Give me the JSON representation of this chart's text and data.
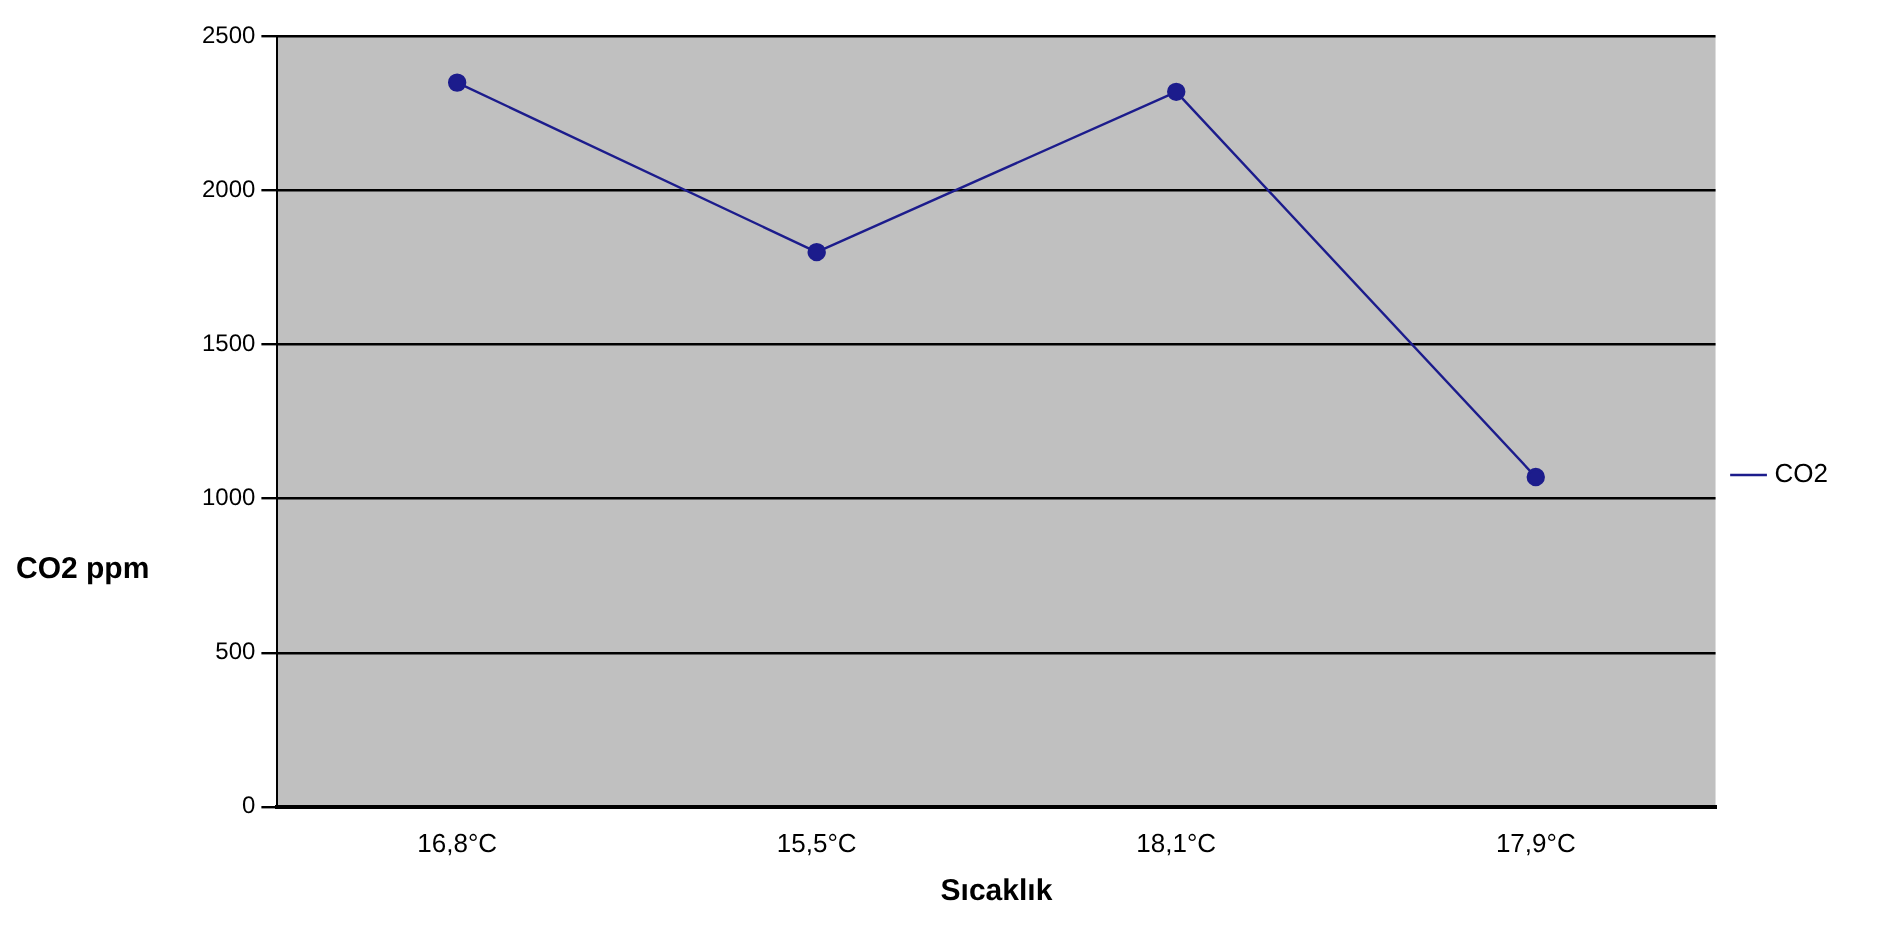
{
  "chart_data": {
    "type": "line",
    "xlabel": "Sıcaklık",
    "ylabel": "CO2 ppm",
    "categories": [
      "16,8°C",
      "15,5°C",
      "18,1°C",
      "17,9°C"
    ],
    "series": [
      {
        "name": "CO2",
        "color": "#1c1c8c",
        "values": [
          2350,
          1800,
          2320,
          1070
        ]
      }
    ],
    "ylim": [
      0,
      2500
    ],
    "yticks": [
      0,
      500,
      1000,
      1500,
      2000,
      2500
    ],
    "grid": "y",
    "legend": "right",
    "marker": "circle",
    "line_style": "solid"
  }
}
